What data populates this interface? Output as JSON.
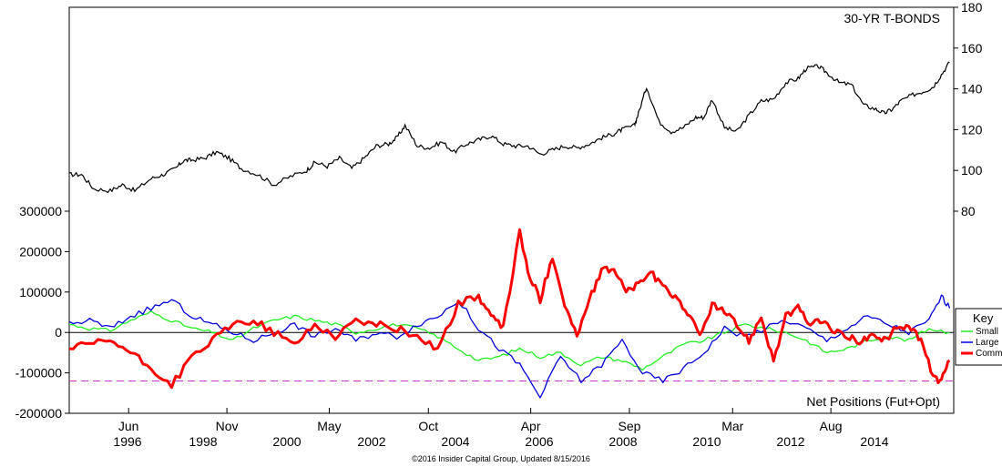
{
  "chart_data": [
    {
      "type": "line",
      "title": "30-YR T-BONDS",
      "x_range": [
        1995.0,
        2016.6
      ],
      "y_axis": "right",
      "ylim": [
        70,
        180
      ],
      "yticks": [
        80,
        100,
        120,
        140,
        160,
        180
      ],
      "series": [
        {
          "color": "#000000",
          "x": [
            1995.0,
            1995.3,
            1995.6,
            1996.0,
            1996.3,
            1996.6,
            1997.0,
            1997.3,
            1997.6,
            1997.8,
            1998.0,
            1998.3,
            1998.6,
            1998.9,
            1999.2,
            1999.6,
            2000.0,
            2000.4,
            2000.8,
            2001.0,
            2001.3,
            2001.6,
            2001.9,
            2002.2,
            2002.5,
            2002.8,
            2003.0,
            2003.2,
            2003.5,
            2003.8,
            2004.1,
            2004.4,
            2004.7,
            2005.0,
            2005.3,
            2005.6,
            2005.9,
            2006.2,
            2006.5,
            2006.8,
            2007.1,
            2007.4,
            2007.7,
            2008.0,
            2008.3,
            2008.5,
            2008.8,
            2008.9,
            2009.1,
            2009.4,
            2009.7,
            2010.0,
            2010.3,
            2010.5,
            2010.7,
            2011.0,
            2011.3,
            2011.6,
            2011.9,
            2012.2,
            2012.5,
            2012.8,
            2013.0,
            2013.3,
            2013.5,
            2013.8,
            2014.1,
            2014.4,
            2014.7,
            2014.9,
            2015.1,
            2015.3,
            2015.6,
            2015.9,
            2016.1,
            2016.3,
            2016.5
          ],
          "values": [
            98,
            98,
            91,
            90,
            93,
            90,
            96,
            98,
            101,
            105,
            105,
            106,
            109,
            106,
            101,
            98,
            93,
            97,
            100,
            104,
            102,
            106,
            101,
            106,
            112,
            113,
            116,
            122,
            112,
            111,
            114,
            109,
            113,
            115,
            117,
            113,
            112,
            112,
            108,
            110,
            112,
            111,
            113,
            116,
            118,
            120,
            122,
            128,
            141,
            124,
            119,
            121,
            126,
            126,
            135,
            121,
            119,
            127,
            134,
            135,
            143,
            145,
            150,
            151,
            148,
            143,
            142,
            132,
            130,
            128,
            130,
            134,
            137,
            139,
            141,
            147,
            153
          ]
        }
      ]
    },
    {
      "type": "line",
      "title": "Net Positions (Fut+Opt)",
      "ylim": [
        -200000,
        300000
      ],
      "yticks": [
        -200000,
        -100000,
        0,
        100000,
        200000,
        300000
      ],
      "ytick_labels": [
        "-200000",
        "-100000",
        "0",
        "100000",
        "200000",
        "300000"
      ],
      "x_range": [
        1995.0,
        2016.6
      ],
      "x_month_labels": [
        {
          "x": 1996.45,
          "label": "Jun"
        },
        {
          "x": 1998.85,
          "label": "Nov"
        },
        {
          "x": 2001.35,
          "label": "May"
        },
        {
          "x": 2003.77,
          "label": "Oct"
        },
        {
          "x": 2006.27,
          "label": "Apr"
        },
        {
          "x": 2008.68,
          "label": "Sep"
        },
        {
          "x": 2011.2,
          "label": "Mar"
        },
        {
          "x": 2013.6,
          "label": "Aug"
        }
      ],
      "x_year_labels": [
        {
          "x": 1996.45,
          "label": "1996"
        },
        {
          "x": 1998.85,
          "label": "1998"
        },
        {
          "x": 2001.35,
          "label": "2000"
        },
        {
          "x": 2003.77,
          "label": "2002"
        },
        {
          "x": 2006.27,
          "label": "2004"
        },
        {
          "x": 2008.68,
          "label": "2006"
        },
        {
          "x": 2011.2,
          "label": "2008"
        },
        {
          "x": 2013.6,
          "label": "2010"
        },
        {
          "x": 2016.02,
          "label": "2012"
        },
        {
          "x": 2018.5,
          "label": "2014"
        }
      ],
      "reference_lines": [
        {
          "y": 0,
          "color": "#000000",
          "style": "solid"
        },
        {
          "y": -120000,
          "color": "#cc33cc",
          "style": "dashed"
        }
      ],
      "series": [
        {
          "name": "Small",
          "color": "#22ee22",
          "x": [
            1995.0,
            1995.5,
            1996.0,
            1996.5,
            1997.0,
            1997.5,
            1998.0,
            1998.5,
            1999.0,
            1999.5,
            2000.0,
            2000.5,
            2001.0,
            2001.5,
            2002.0,
            2002.5,
            2003.0,
            2003.5,
            2004.0,
            2004.5,
            2005.0,
            2005.5,
            2006.0,
            2006.5,
            2007.0,
            2007.5,
            2008.0,
            2008.5,
            2009.0,
            2009.5,
            2010.0,
            2010.5,
            2011.0,
            2011.5,
            2012.0,
            2012.5,
            2013.0,
            2013.5,
            2014.0,
            2014.5,
            2015.0,
            2015.5,
            2016.0,
            2016.5
          ],
          "values": [
            20000,
            10000,
            5000,
            30000,
            50000,
            30000,
            10000,
            0,
            -20000,
            10000,
            30000,
            40000,
            30000,
            20000,
            0,
            10000,
            20000,
            10000,
            -10000,
            -40000,
            -70000,
            -60000,
            -40000,
            -60000,
            -50000,
            -80000,
            -60000,
            -70000,
            -90000,
            -60000,
            -30000,
            -20000,
            0,
            20000,
            10000,
            0,
            -20000,
            -50000,
            -40000,
            -20000,
            -10000,
            -20000,
            10000,
            0
          ]
        },
        {
          "name": "Large",
          "color": "#0000dd",
          "x": [
            1995.0,
            1995.5,
            1996.0,
            1996.5,
            1997.0,
            1997.5,
            1998.0,
            1998.5,
            1999.0,
            1999.5,
            2000.0,
            2000.5,
            2001.0,
            2001.5,
            2002.0,
            2002.5,
            2003.0,
            2003.5,
            2004.0,
            2004.5,
            2005.0,
            2005.5,
            2006.0,
            2006.5,
            2007.0,
            2007.5,
            2008.0,
            2008.5,
            2009.0,
            2009.5,
            2010.0,
            2010.5,
            2011.0,
            2011.5,
            2012.0,
            2012.5,
            2013.0,
            2013.5,
            2014.0,
            2014.5,
            2015.0,
            2015.5,
            2016.0,
            2016.3,
            2016.5
          ],
          "values": [
            20000,
            30000,
            10000,
            40000,
            60000,
            80000,
            40000,
            20000,
            0,
            -20000,
            0,
            20000,
            -10000,
            10000,
            -20000,
            0,
            -10000,
            20000,
            40000,
            80000,
            10000,
            -40000,
            -80000,
            -160000,
            -60000,
            -120000,
            -80000,
            -20000,
            -100000,
            -120000,
            -90000,
            -50000,
            10000,
            -10000,
            10000,
            30000,
            10000,
            -20000,
            10000,
            40000,
            20000,
            0,
            30000,
            90000,
            60000
          ]
        },
        {
          "name": "Comm",
          "color": "#ff0000",
          "x": [
            1995.0,
            1995.5,
            1996.0,
            1996.5,
            1997.0,
            1997.5,
            1998.0,
            1998.5,
            1999.0,
            1999.5,
            2000.0,
            2000.5,
            2001.0,
            2001.5,
            2002.0,
            2002.5,
            2003.0,
            2003.5,
            2004.0,
            2004.5,
            2005.0,
            2005.3,
            2005.6,
            2006.0,
            2006.2,
            2006.5,
            2006.8,
            2007.1,
            2007.4,
            2007.7,
            2008.0,
            2008.3,
            2008.6,
            2008.9,
            2009.2,
            2009.5,
            2009.8,
            2010.1,
            2010.4,
            2010.7,
            2011.0,
            2011.3,
            2011.6,
            2011.9,
            2012.2,
            2012.5,
            2012.8,
            2013.1,
            2013.4,
            2013.7,
            2014.0,
            2014.3,
            2014.6,
            2014.9,
            2015.2,
            2015.5,
            2015.8,
            2016.1,
            2016.3,
            2016.5
          ],
          "values": [
            -40000,
            -30000,
            -20000,
            -50000,
            -90000,
            -130000,
            -60000,
            -20000,
            20000,
            30000,
            0,
            -30000,
            20000,
            -10000,
            30000,
            20000,
            10000,
            -10000,
            -40000,
            70000,
            90000,
            40000,
            10000,
            250000,
            150000,
            80000,
            190000,
            70000,
            -10000,
            80000,
            150000,
            160000,
            100000,
            120000,
            150000,
            110000,
            90000,
            50000,
            -10000,
            70000,
            50000,
            20000,
            -20000,
            40000,
            -70000,
            40000,
            60000,
            20000,
            30000,
            0,
            -10000,
            -20000,
            -10000,
            -20000,
            10000,
            20000,
            -20000,
            -110000,
            -120000,
            -70000
          ]
        }
      ],
      "legend": {
        "title": "Key",
        "placement": "right",
        "entries": [
          "Small",
          "Large",
          "Comm"
        ]
      }
    }
  ],
  "credit": "©2016 Insider Capital Group, Updated 8/15/2016"
}
